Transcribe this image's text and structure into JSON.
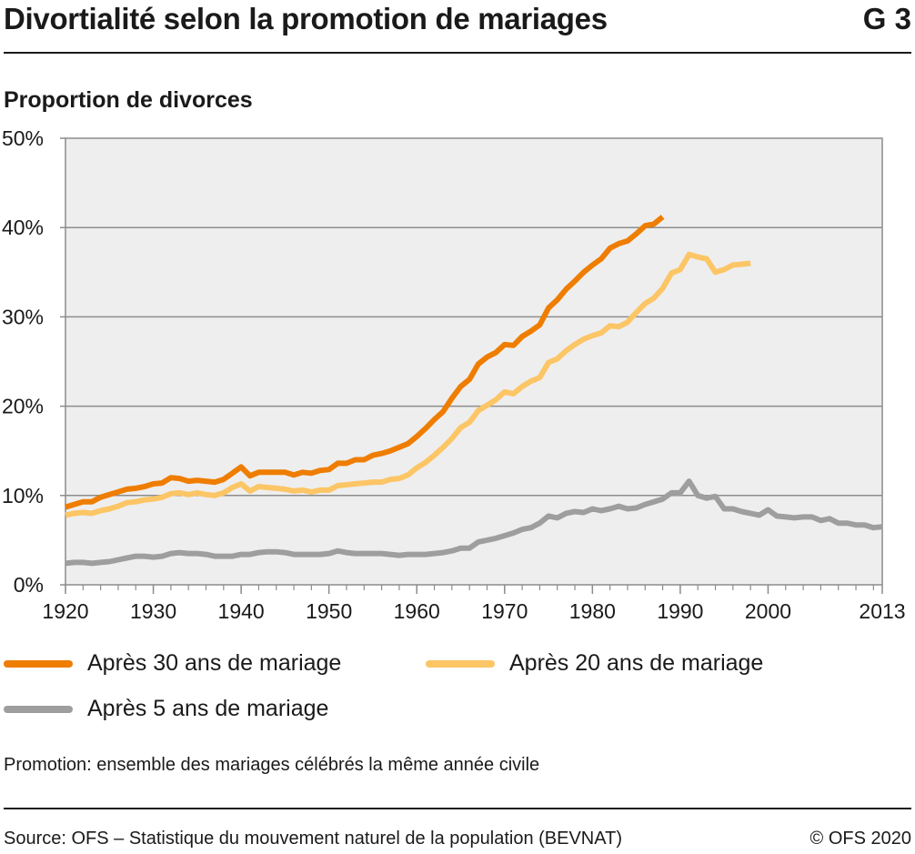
{
  "header": {
    "title": "Divortialité selon la promotion de mariages",
    "code": "G 3"
  },
  "y_axis_title": "Proportion de divorces",
  "note": "Promotion: ensemble des mariages célébrés la même année civile",
  "source": "Source: OFS – Statistique du mouvement naturel de la population (BEVNAT)",
  "copyright": "© OFS 2020",
  "chart_data": {
    "type": "line",
    "title": "Divortialité selon la promotion de mariages",
    "ylabel": "Proportion de divorces",
    "xlabel": "",
    "xlim": [
      1920,
      2013
    ],
    "ylim": [
      0,
      50
    ],
    "x_ticks": [
      "1920",
      "1930",
      "1940",
      "1950",
      "1960",
      "1970",
      "1980",
      "1990",
      "2000",
      "2013"
    ],
    "y_ticks": [
      "0%",
      "10%",
      "20%",
      "30%",
      "40%",
      "50%"
    ],
    "grid": true,
    "legend_position": "bottom",
    "series": [
      {
        "name": "Après 30 ans de mariage",
        "color": "#ee7d00",
        "x": [
          1920,
          1921,
          1922,
          1923,
          1924,
          1925,
          1926,
          1927,
          1928,
          1929,
          1930,
          1931,
          1932,
          1933,
          1934,
          1935,
          1936,
          1937,
          1938,
          1939,
          1940,
          1941,
          1942,
          1943,
          1944,
          1945,
          1946,
          1947,
          1948,
          1949,
          1950,
          1951,
          1952,
          1953,
          1954,
          1955,
          1956,
          1957,
          1958,
          1959,
          1960,
          1961,
          1962,
          1963,
          1964,
          1965,
          1966,
          1967,
          1968,
          1969,
          1970,
          1971,
          1972,
          1973,
          1974,
          1975,
          1976,
          1977,
          1978,
          1979,
          1980,
          1981,
          1982,
          1983,
          1984,
          1985,
          1986,
          1987,
          1988
        ],
        "values": [
          8.7,
          9.0,
          9.3,
          9.3,
          9.8,
          10.1,
          10.4,
          10.7,
          10.8,
          11.0,
          11.3,
          11.4,
          12.0,
          11.9,
          11.6,
          11.7,
          11.6,
          11.5,
          11.8,
          12.5,
          13.2,
          12.2,
          12.6,
          12.6,
          12.6,
          12.6,
          12.3,
          12.6,
          12.5,
          12.8,
          12.9,
          13.6,
          13.6,
          14.0,
          14.0,
          14.5,
          14.7,
          15.0,
          15.4,
          15.8,
          16.6,
          17.5,
          18.5,
          19.4,
          20.9,
          22.2,
          23.0,
          24.7,
          25.5,
          26.0,
          26.9,
          26.8,
          27.8,
          28.4,
          29.1,
          31.0,
          31.9,
          33.1,
          34.0,
          35.0,
          35.8,
          36.5,
          37.7,
          38.2,
          38.5,
          39.3,
          40.2,
          40.4,
          41.2
        ]
      },
      {
        "name": "Après 20 ans de mariage",
        "color": "#fcc565",
        "x": [
          1920,
          1921,
          1922,
          1923,
          1924,
          1925,
          1926,
          1927,
          1928,
          1929,
          1930,
          1931,
          1932,
          1933,
          1934,
          1935,
          1936,
          1937,
          1938,
          1939,
          1940,
          1941,
          1942,
          1943,
          1944,
          1945,
          1946,
          1947,
          1948,
          1949,
          1950,
          1951,
          1952,
          1953,
          1954,
          1955,
          1956,
          1957,
          1958,
          1959,
          1960,
          1961,
          1962,
          1963,
          1964,
          1965,
          1966,
          1967,
          1968,
          1969,
          1970,
          1971,
          1972,
          1973,
          1974,
          1975,
          1976,
          1977,
          1978,
          1979,
          1980,
          1981,
          1982,
          1983,
          1984,
          1985,
          1986,
          1987,
          1988,
          1989,
          1990,
          1991,
          1992,
          1993,
          1994,
          1995,
          1996,
          1997,
          1998
        ],
        "values": [
          7.8,
          8.0,
          8.1,
          8.0,
          8.3,
          8.5,
          8.8,
          9.2,
          9.3,
          9.5,
          9.6,
          9.8,
          10.2,
          10.3,
          10.1,
          10.3,
          10.1,
          10.0,
          10.3,
          10.9,
          11.3,
          10.5,
          11.0,
          10.9,
          10.8,
          10.7,
          10.5,
          10.6,
          10.4,
          10.6,
          10.6,
          11.1,
          11.2,
          11.3,
          11.4,
          11.5,
          11.5,
          11.8,
          11.9,
          12.3,
          13.1,
          13.7,
          14.5,
          15.4,
          16.4,
          17.6,
          18.2,
          19.5,
          20.1,
          20.7,
          21.6,
          21.4,
          22.2,
          22.8,
          23.2,
          24.9,
          25.3,
          26.2,
          26.9,
          27.5,
          27.9,
          28.2,
          29.0,
          28.9,
          29.4,
          30.5,
          31.5,
          32.1,
          33.2,
          34.9,
          35.3,
          37.0,
          36.7,
          36.5,
          35.0,
          35.3,
          35.8,
          35.9,
          36.0
        ]
      },
      {
        "name": "Après 5 ans de mariage",
        "color": "#9e9e9e",
        "x": [
          1920,
          1921,
          1922,
          1923,
          1924,
          1925,
          1926,
          1927,
          1928,
          1929,
          1930,
          1931,
          1932,
          1933,
          1934,
          1935,
          1936,
          1937,
          1938,
          1939,
          1940,
          1941,
          1942,
          1943,
          1944,
          1945,
          1946,
          1947,
          1948,
          1949,
          1950,
          1951,
          1952,
          1953,
          1954,
          1955,
          1956,
          1957,
          1958,
          1959,
          1960,
          1961,
          1962,
          1963,
          1964,
          1965,
          1966,
          1967,
          1968,
          1969,
          1970,
          1971,
          1972,
          1973,
          1974,
          1975,
          1976,
          1977,
          1978,
          1979,
          1980,
          1981,
          1982,
          1983,
          1984,
          1985,
          1986,
          1987,
          1988,
          1989,
          1990,
          1991,
          1992,
          1993,
          1994,
          1995,
          1996,
          1997,
          1998,
          1999,
          2000,
          2001,
          2002,
          2003,
          2004,
          2005,
          2006,
          2007,
          2008,
          2009,
          2010,
          2011,
          2012,
          2013
        ],
        "values": [
          2.4,
          2.5,
          2.5,
          2.4,
          2.5,
          2.6,
          2.8,
          3.0,
          3.2,
          3.2,
          3.1,
          3.2,
          3.5,
          3.6,
          3.5,
          3.5,
          3.4,
          3.2,
          3.2,
          3.2,
          3.4,
          3.4,
          3.6,
          3.7,
          3.7,
          3.6,
          3.4,
          3.4,
          3.4,
          3.4,
          3.5,
          3.8,
          3.6,
          3.5,
          3.5,
          3.5,
          3.5,
          3.4,
          3.3,
          3.4,
          3.4,
          3.4,
          3.5,
          3.6,
          3.8,
          4.1,
          4.1,
          4.8,
          5.0,
          5.2,
          5.5,
          5.8,
          6.2,
          6.4,
          6.9,
          7.7,
          7.5,
          8.0,
          8.2,
          8.1,
          8.5,
          8.3,
          8.5,
          8.8,
          8.5,
          8.6,
          9.0,
          9.3,
          9.6,
          10.3,
          10.3,
          11.6,
          10.0,
          9.7,
          9.9,
          8.5,
          8.5,
          8.2,
          8.0,
          7.8,
          8.4,
          7.7,
          7.6,
          7.5,
          7.6,
          7.6,
          7.2,
          7.4,
          6.9,
          6.9,
          6.7,
          6.7,
          6.4,
          6.5
        ]
      }
    ]
  }
}
